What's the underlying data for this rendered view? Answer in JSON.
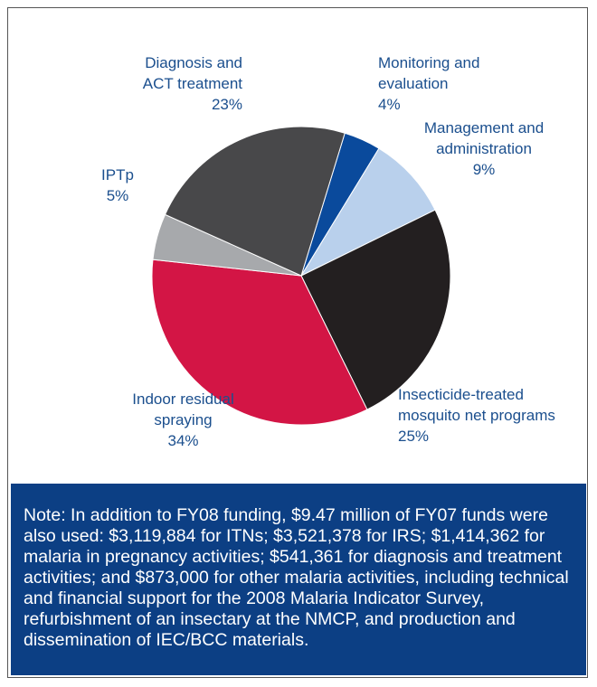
{
  "chart_data": {
    "type": "pie",
    "categories": [
      "Monitoring and\nevaluation",
      "Management and\nadministration",
      "Insecticide-treated\nmosquito net programs",
      "Indoor residual\nspraying",
      "IPTp",
      "Diagnosis and\nACT treatment"
    ],
    "values": [
      4,
      9,
      25,
      34,
      5,
      23
    ],
    "value_labels": [
      "4%",
      "9%",
      "25%",
      "34%",
      "5%",
      "23%"
    ],
    "colors": [
      "#0a4a9c",
      "#b9d0ec",
      "#231f20",
      "#d31545",
      "#a7a9ac",
      "#48484a"
    ],
    "note": "Note: In addition to FY08 funding, $9.47 million of FY07 funds were also used: $3,119,884 for ITNs; $3,521,378 for IRS; $1,414,362 for malaria in pregnancy activities; $541,361 for diagnosis and treatment activities; and $873,000 for other malaria activities, including technical and financial support for the 2008 Malaria Indicator Survey, refurbishment of an insectary at the NMCP, and production and dissemination of IEC/BCC materials."
  }
}
